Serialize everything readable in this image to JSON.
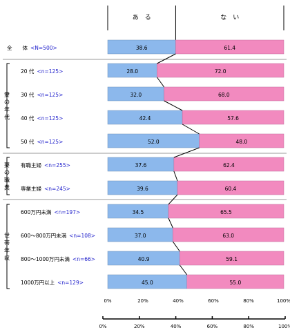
{
  "chart_data": {
    "type": "bar",
    "stacked": "percent",
    "legend_labels": [
      "あ　る",
      "な　い"
    ],
    "series": [
      {
        "name": "あ　る",
        "color": "#8CB8EC"
      },
      {
        "name": "な　い",
        "color": "#F28ABF"
      }
    ],
    "groups": [
      {
        "label": "",
        "rows": [
          {
            "label": "全　　体",
            "n": "<N=500>",
            "values": [
              38.6,
              61.4
            ]
          }
        ]
      },
      {
        "label": "妻の年代",
        "rows": [
          {
            "label": "20 代",
            "n": "<n=125>",
            "values": [
              28.0,
              72.0
            ]
          },
          {
            "label": "30 代",
            "n": "<n=125>",
            "values": [
              32.0,
              68.0
            ]
          },
          {
            "label": "40 代",
            "n": "<n=125>",
            "values": [
              42.4,
              57.6
            ]
          },
          {
            "label": "50 代",
            "n": "<n=125>",
            "values": [
              52.0,
              48.0
            ]
          }
        ]
      },
      {
        "label": "妻の職業",
        "rows": [
          {
            "label": "有職主婦",
            "n": "<n=255>",
            "values": [
              37.6,
              62.4
            ]
          },
          {
            "label": "専業主婦",
            "n": "<n=245>",
            "values": [
              39.6,
              60.4
            ]
          }
        ]
      },
      {
        "label": "世帯年収",
        "rows": [
          {
            "label": "600万円未満",
            "n": "<n=197>",
            "values": [
              34.5,
              65.5
            ]
          },
          {
            "label": "600～800万円未満",
            "n": "<n=108>",
            "values": [
              37.0,
              63.0
            ]
          },
          {
            "label": "800～1000万円未満",
            "n": "<n=66>",
            "values": [
              40.9,
              59.1
            ]
          },
          {
            "label": "1000万円以上",
            "n": "<n=129>",
            "values": [
              45.0,
              55.0
            ]
          }
        ]
      }
    ],
    "xticks": [
      "0%",
      "20%",
      "40%",
      "60%",
      "80%",
      "100%"
    ],
    "xlim": [
      0,
      100
    ],
    "grid": false,
    "connector_lines": true,
    "label_color": "#000000",
    "n_color": "#2222CC",
    "line_color": "#000000"
  }
}
